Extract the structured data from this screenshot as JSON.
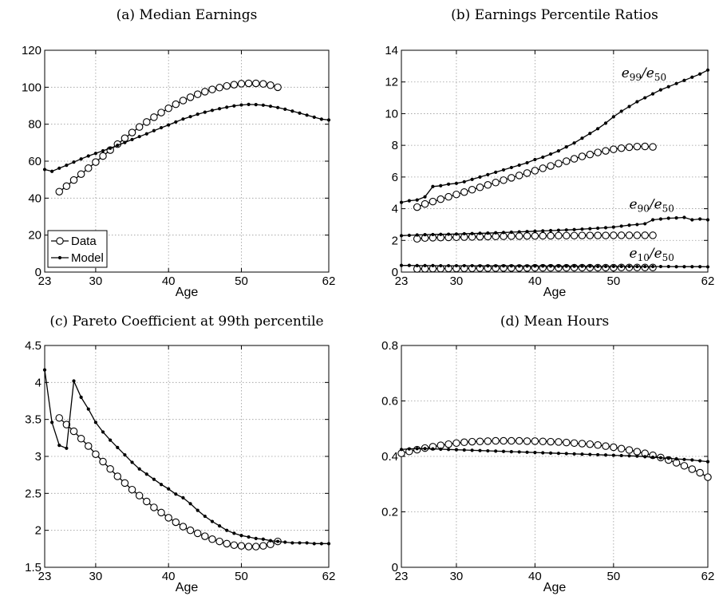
{
  "chart_data": [
    {
      "id": "a",
      "type": "line",
      "title": "(a) Median Earnings",
      "xlabel": "Age",
      "ylabel": "",
      "xlim": [
        23,
        62
      ],
      "ylim": [
        0,
        120
      ],
      "xticks": [
        23,
        30,
        40,
        50,
        62
      ],
      "yticks": [
        0,
        20,
        40,
        60,
        80,
        100,
        120
      ],
      "grid": true,
      "legend": {
        "position": "bottom-left",
        "entries": [
          "Data",
          "Model"
        ]
      },
      "series": [
        {
          "name": "Data",
          "marker": "circle",
          "x": [
            25,
            26,
            27,
            28,
            29,
            30,
            31,
            32,
            33,
            34,
            35,
            36,
            37,
            38,
            39,
            40,
            41,
            42,
            43,
            44,
            45,
            46,
            47,
            48,
            49,
            50,
            51,
            52,
            53,
            54,
            55
          ],
          "values": [
            43.5,
            46.5,
            49.8,
            53.0,
            56.2,
            59.5,
            62.8,
            66.0,
            69.2,
            72.4,
            75.5,
            78.5,
            81.2,
            83.8,
            86.3,
            88.6,
            90.8,
            92.8,
            94.6,
            96.2,
            97.6,
            98.8,
            99.8,
            100.7,
            101.4,
            101.9,
            102.1,
            102.1,
            101.8,
            101.1,
            100.0
          ]
        },
        {
          "name": "Model",
          "marker": "dot",
          "x": [
            23,
            24,
            25,
            26,
            27,
            28,
            29,
            30,
            31,
            32,
            33,
            34,
            35,
            36,
            37,
            38,
            39,
            40,
            41,
            42,
            43,
            44,
            45,
            46,
            47,
            48,
            49,
            50,
            51,
            52,
            53,
            54,
            55,
            56,
            57,
            58,
            59,
            60,
            61,
            62
          ],
          "values": [
            55.5,
            54.5,
            56.2,
            57.8,
            59.5,
            61.2,
            62.8,
            64.2,
            65.6,
            67.0,
            68.6,
            70.1,
            71.7,
            73.3,
            74.8,
            76.5,
            78.1,
            79.6,
            81.2,
            82.8,
            84.1,
            85.4,
            86.5,
            87.5,
            88.4,
            89.2,
            89.9,
            90.4,
            90.7,
            90.6,
            90.3,
            89.7,
            89.0,
            88.1,
            87.1,
            86.0,
            84.9,
            83.8,
            82.7,
            82.3
          ]
        }
      ]
    },
    {
      "id": "b",
      "type": "line",
      "title": "(b) Earnings Percentile Ratios",
      "xlabel": "Age",
      "ylabel": "",
      "xlim": [
        23,
        62
      ],
      "ylim": [
        0,
        14
      ],
      "xticks": [
        23,
        30,
        40,
        50,
        62
      ],
      "yticks": [
        0,
        2,
        4,
        6,
        8,
        10,
        12,
        14
      ],
      "grid": true,
      "annotations": [
        {
          "base": "e",
          "sub1": "99",
          "sep": "/e",
          "sub2": "50",
          "x": 51,
          "y": 12.3
        },
        {
          "base": "e",
          "sub1": "90",
          "sep": "/e",
          "sub2": "50",
          "x": 52,
          "y": 4.0
        },
        {
          "base": "e",
          "sub1": "10",
          "sep": "/e",
          "sub2": "50",
          "x": 52,
          "y": 0.9
        }
      ],
      "series": [
        {
          "name": "e99/e50 Data",
          "marker": "circle",
          "x": [
            25,
            26,
            27,
            28,
            29,
            30,
            31,
            32,
            33,
            34,
            35,
            36,
            37,
            38,
            39,
            40,
            41,
            42,
            43,
            44,
            45,
            46,
            47,
            48,
            49,
            50,
            51,
            52,
            53,
            54,
            55
          ],
          "values": [
            4.1,
            4.3,
            4.45,
            4.6,
            4.75,
            4.9,
            5.05,
            5.2,
            5.35,
            5.5,
            5.65,
            5.8,
            5.95,
            6.1,
            6.25,
            6.4,
            6.55,
            6.7,
            6.85,
            7.0,
            7.15,
            7.3,
            7.42,
            7.55,
            7.65,
            7.75,
            7.82,
            7.88,
            7.92,
            7.93,
            7.9
          ]
        },
        {
          "name": "e99/e50 Model",
          "marker": "dot",
          "x": [
            23,
            24,
            25,
            26,
            27,
            28,
            29,
            30,
            31,
            32,
            33,
            34,
            35,
            36,
            37,
            38,
            39,
            40,
            41,
            42,
            43,
            44,
            45,
            46,
            47,
            48,
            49,
            50,
            51,
            52,
            53,
            54,
            55,
            56,
            57,
            58,
            59,
            60,
            61,
            62
          ],
          "values": [
            4.4,
            4.5,
            4.55,
            4.75,
            5.4,
            5.45,
            5.55,
            5.6,
            5.7,
            5.85,
            6.0,
            6.15,
            6.3,
            6.45,
            6.6,
            6.75,
            6.9,
            7.1,
            7.25,
            7.45,
            7.65,
            7.9,
            8.15,
            8.45,
            8.75,
            9.05,
            9.4,
            9.8,
            10.15,
            10.45,
            10.75,
            11.0,
            11.25,
            11.5,
            11.7,
            11.9,
            12.1,
            12.3,
            12.5,
            12.75
          ]
        },
        {
          "name": "e90/e50 Data",
          "marker": "circle",
          "x": [
            25,
            26,
            27,
            28,
            29,
            30,
            31,
            32,
            33,
            34,
            35,
            36,
            37,
            38,
            39,
            40,
            41,
            42,
            43,
            44,
            45,
            46,
            47,
            48,
            49,
            50,
            51,
            52,
            53,
            54,
            55
          ],
          "values": [
            2.1,
            2.15,
            2.17,
            2.18,
            2.19,
            2.2,
            2.21,
            2.22,
            2.23,
            2.24,
            2.25,
            2.26,
            2.27,
            2.27,
            2.28,
            2.28,
            2.29,
            2.29,
            2.3,
            2.3,
            2.3,
            2.31,
            2.31,
            2.31,
            2.31,
            2.32,
            2.32,
            2.32,
            2.32,
            2.32,
            2.32
          ]
        },
        {
          "name": "e90/e50 Model",
          "marker": "dot",
          "x": [
            23,
            24,
            25,
            26,
            27,
            28,
            29,
            30,
            31,
            32,
            33,
            34,
            35,
            36,
            37,
            38,
            39,
            40,
            41,
            42,
            43,
            44,
            45,
            46,
            47,
            48,
            49,
            50,
            51,
            52,
            53,
            54,
            55,
            56,
            57,
            58,
            59,
            60,
            61,
            62
          ],
          "values": [
            2.3,
            2.32,
            2.34,
            2.36,
            2.37,
            2.38,
            2.39,
            2.4,
            2.42,
            2.43,
            2.45,
            2.46,
            2.48,
            2.5,
            2.52,
            2.54,
            2.56,
            2.58,
            2.6,
            2.62,
            2.64,
            2.66,
            2.68,
            2.71,
            2.74,
            2.77,
            2.8,
            2.84,
            2.9,
            2.96,
            3.0,
            3.05,
            3.3,
            3.35,
            3.4,
            3.42,
            3.45,
            3.3,
            3.35,
            3.3
          ]
        },
        {
          "name": "e10/e50 Data",
          "marker": "circle",
          "x": [
            25,
            26,
            27,
            28,
            29,
            30,
            31,
            32,
            33,
            34,
            35,
            36,
            37,
            38,
            39,
            40,
            41,
            42,
            43,
            44,
            45,
            46,
            47,
            48,
            49,
            50,
            51,
            52,
            53,
            54,
            55
          ],
          "values": [
            0.2,
            0.21,
            0.22,
            0.22,
            0.23,
            0.23,
            0.24,
            0.24,
            0.25,
            0.25,
            0.25,
            0.26,
            0.26,
            0.26,
            0.26,
            0.27,
            0.27,
            0.27,
            0.27,
            0.27,
            0.28,
            0.28,
            0.28,
            0.28,
            0.28,
            0.28,
            0.29,
            0.29,
            0.29,
            0.29,
            0.29
          ]
        },
        {
          "name": "e10/e50 Model",
          "marker": "dot",
          "x": [
            23,
            24,
            25,
            26,
            27,
            28,
            29,
            30,
            31,
            32,
            33,
            34,
            35,
            36,
            37,
            38,
            39,
            40,
            41,
            42,
            43,
            44,
            45,
            46,
            47,
            48,
            49,
            50,
            51,
            52,
            53,
            54,
            55,
            56,
            57,
            58,
            59,
            60,
            61,
            62
          ],
          "values": [
            0.42,
            0.42,
            0.41,
            0.41,
            0.41,
            0.4,
            0.4,
            0.4,
            0.4,
            0.4,
            0.39,
            0.39,
            0.39,
            0.39,
            0.39,
            0.38,
            0.38,
            0.38,
            0.38,
            0.38,
            0.37,
            0.37,
            0.37,
            0.37,
            0.37,
            0.36,
            0.36,
            0.36,
            0.36,
            0.36,
            0.35,
            0.35,
            0.35,
            0.35,
            0.35,
            0.34,
            0.34,
            0.34,
            0.34,
            0.33
          ]
        }
      ]
    },
    {
      "id": "c",
      "type": "line",
      "title": "(c) Pareto Coefficient at 99th percentile",
      "xlabel": "Age",
      "ylabel": "",
      "xlim": [
        23,
        62
      ],
      "ylim": [
        1.5,
        4.5
      ],
      "xticks": [
        23,
        30,
        40,
        50,
        62
      ],
      "yticks": [
        1.5,
        2,
        2.5,
        3,
        3.5,
        4,
        4.5
      ],
      "grid": true,
      "series": [
        {
          "name": "Data",
          "marker": "circle",
          "x": [
            25,
            26,
            27,
            28,
            29,
            30,
            31,
            32,
            33,
            34,
            35,
            36,
            37,
            38,
            39,
            40,
            41,
            42,
            43,
            44,
            45,
            46,
            47,
            48,
            49,
            50,
            51,
            52,
            53,
            54,
            55
          ],
          "values": [
            3.52,
            3.43,
            3.34,
            3.24,
            3.14,
            3.03,
            2.93,
            2.83,
            2.73,
            2.64,
            2.55,
            2.47,
            2.39,
            2.31,
            2.24,
            2.17,
            2.11,
            2.05,
            2.0,
            1.96,
            1.92,
            1.88,
            1.85,
            1.82,
            1.8,
            1.79,
            1.78,
            1.78,
            1.79,
            1.81,
            1.85
          ]
        },
        {
          "name": "Model",
          "marker": "dot",
          "x": [
            23,
            24,
            25,
            26,
            27,
            28,
            29,
            30,
            31,
            32,
            33,
            34,
            35,
            36,
            37,
            38,
            39,
            40,
            41,
            42,
            43,
            44,
            45,
            46,
            47,
            48,
            49,
            50,
            51,
            52,
            53,
            54,
            55,
            56,
            57,
            58,
            59,
            60,
            61,
            62
          ],
          "values": [
            4.17,
            3.46,
            3.15,
            3.11,
            4.02,
            3.8,
            3.64,
            3.46,
            3.33,
            3.22,
            3.12,
            3.02,
            2.92,
            2.83,
            2.76,
            2.69,
            2.62,
            2.56,
            2.49,
            2.44,
            2.36,
            2.27,
            2.19,
            2.12,
            2.06,
            2.0,
            1.96,
            1.93,
            1.91,
            1.89,
            1.88,
            1.86,
            1.85,
            1.84,
            1.83,
            1.83,
            1.83,
            1.82,
            1.82,
            1.82
          ]
        }
      ]
    },
    {
      "id": "d",
      "type": "line",
      "title": "(d) Mean Hours",
      "xlabel": "Age",
      "ylabel": "",
      "xlim": [
        23,
        62
      ],
      "ylim": [
        0,
        0.8
      ],
      "xticks": [
        23,
        30,
        40,
        50,
        62
      ],
      "yticks": [
        0,
        0.2,
        0.4,
        0.6,
        0.8
      ],
      "grid": true,
      "series": [
        {
          "name": "Data",
          "marker": "circle",
          "x": [
            23,
            24,
            25,
            26,
            27,
            28,
            29,
            30,
            31,
            32,
            33,
            34,
            35,
            36,
            37,
            38,
            39,
            40,
            41,
            42,
            43,
            44,
            45,
            46,
            47,
            48,
            49,
            50,
            51,
            52,
            53,
            54,
            55,
            56,
            57,
            58,
            59,
            60,
            61,
            62
          ],
          "values": [
            0.411,
            0.418,
            0.424,
            0.43,
            0.435,
            0.44,
            0.444,
            0.448,
            0.451,
            0.453,
            0.454,
            0.455,
            0.456,
            0.456,
            0.456,
            0.456,
            0.455,
            0.455,
            0.454,
            0.453,
            0.452,
            0.45,
            0.448,
            0.446,
            0.444,
            0.441,
            0.437,
            0.433,
            0.428,
            0.423,
            0.417,
            0.411,
            0.404,
            0.396,
            0.387,
            0.377,
            0.366,
            0.354,
            0.341,
            0.325
          ]
        },
        {
          "name": "Model",
          "marker": "dot",
          "x": [
            23,
            24,
            25,
            26,
            27,
            28,
            29,
            30,
            31,
            32,
            33,
            34,
            35,
            36,
            37,
            38,
            39,
            40,
            41,
            42,
            43,
            44,
            45,
            46,
            47,
            48,
            49,
            50,
            51,
            52,
            53,
            54,
            55,
            56,
            57,
            58,
            59,
            60,
            61,
            62
          ],
          "values": [
            0.425,
            0.427,
            0.428,
            0.428,
            0.427,
            0.426,
            0.425,
            0.424,
            0.423,
            0.422,
            0.421,
            0.42,
            0.419,
            0.418,
            0.417,
            0.416,
            0.415,
            0.414,
            0.413,
            0.412,
            0.411,
            0.41,
            0.409,
            0.408,
            0.407,
            0.406,
            0.405,
            0.404,
            0.403,
            0.402,
            0.401,
            0.399,
            0.397,
            0.395,
            0.393,
            0.391,
            0.389,
            0.387,
            0.384,
            0.381
          ]
        }
      ]
    }
  ]
}
